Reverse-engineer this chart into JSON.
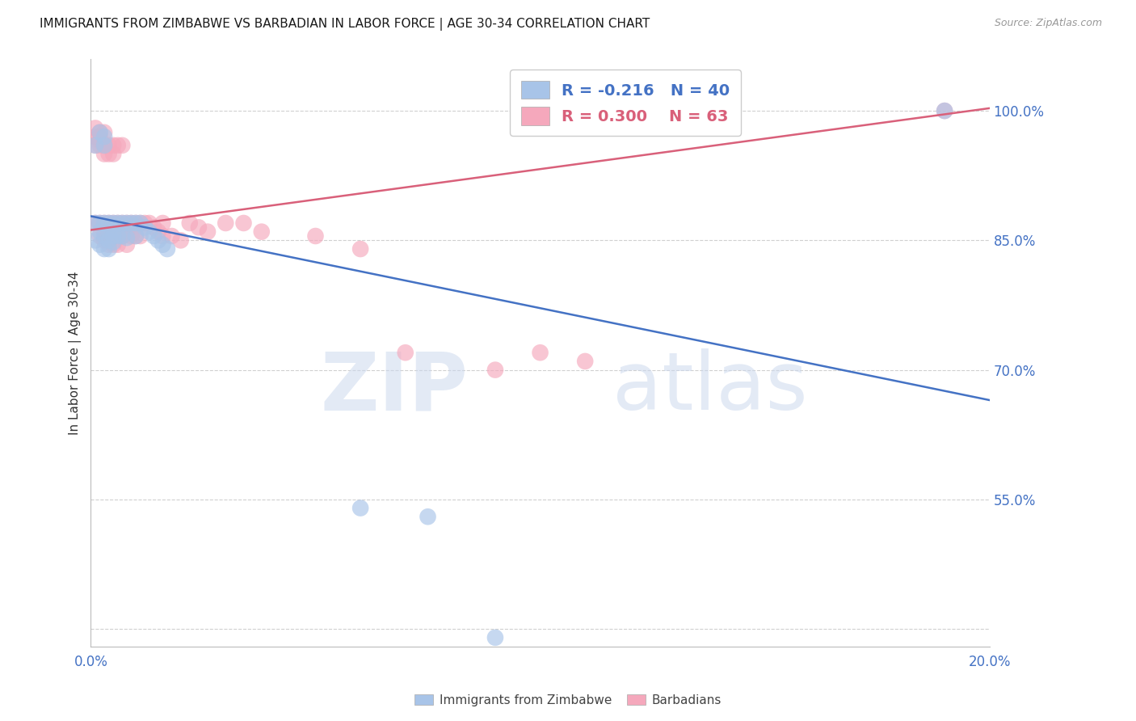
{
  "title": "IMMIGRANTS FROM ZIMBABWE VS BARBADIAN IN LABOR FORCE | AGE 30-34 CORRELATION CHART",
  "source": "Source: ZipAtlas.com",
  "ylabel": "In Labor Force | Age 30-34",
  "xlim": [
    0.0,
    0.2
  ],
  "ylim": [
    0.38,
    1.06
  ],
  "grid_yticks": [
    0.4,
    0.55,
    0.7,
    0.85,
    1.0
  ],
  "right_yticks": [
    0.55,
    0.7,
    0.85,
    1.0
  ],
  "right_yticklabels": [
    "55.0%",
    "70.0%",
    "85.0%",
    "100.0%"
  ],
  "xtick_positions": [
    0.0,
    0.04,
    0.08,
    0.12,
    0.16,
    0.2
  ],
  "xtick_labels": [
    "0.0%",
    "",
    "",
    "",
    "",
    "20.0%"
  ],
  "grid_color": "#d0d0d0",
  "legend_R_blue": "-0.216",
  "legend_N_blue": "40",
  "legend_R_pink": "0.300",
  "legend_N_pink": "63",
  "legend_label_blue": "Immigrants from Zimbabwe",
  "legend_label_pink": "Barbadians",
  "blue_color": "#a8c4e8",
  "pink_color": "#f5a8bc",
  "blue_line_color": "#4472c4",
  "pink_line_color": "#d9607a",
  "watermark_zip": "ZIP",
  "watermark_atlas": "atlas",
  "title_color": "#1a1a1a",
  "axis_label_color": "#4472c4",
  "blue_line_x": [
    0.0,
    0.2
  ],
  "blue_line_y": [
    0.878,
    0.665
  ],
  "pink_line_x": [
    0.0,
    0.2
  ],
  "pink_line_y": [
    0.862,
    1.003
  ],
  "blue_dots_x": [
    0.001,
    0.001,
    0.001,
    0.002,
    0.002,
    0.002,
    0.002,
    0.003,
    0.003,
    0.003,
    0.003,
    0.003,
    0.004,
    0.004,
    0.004,
    0.004,
    0.005,
    0.005,
    0.005,
    0.005,
    0.006,
    0.006,
    0.007,
    0.007,
    0.008,
    0.008,
    0.009,
    0.01,
    0.01,
    0.011,
    0.012,
    0.013,
    0.014,
    0.015,
    0.016,
    0.017,
    0.06,
    0.075,
    0.09,
    0.19
  ],
  "blue_dots_y": [
    0.96,
    0.87,
    0.85,
    0.975,
    0.87,
    0.86,
    0.845,
    0.97,
    0.96,
    0.87,
    0.855,
    0.84,
    0.87,
    0.86,
    0.85,
    0.84,
    0.87,
    0.862,
    0.855,
    0.848,
    0.87,
    0.855,
    0.87,
    0.855,
    0.87,
    0.853,
    0.87,
    0.87,
    0.855,
    0.87,
    0.865,
    0.86,
    0.855,
    0.85,
    0.845,
    0.84,
    0.54,
    0.53,
    0.39,
    1.0
  ],
  "pink_dots_x": [
    0.001,
    0.001,
    0.001,
    0.001,
    0.002,
    0.002,
    0.002,
    0.002,
    0.002,
    0.002,
    0.003,
    0.003,
    0.003,
    0.003,
    0.003,
    0.003,
    0.004,
    0.004,
    0.004,
    0.004,
    0.004,
    0.005,
    0.005,
    0.005,
    0.005,
    0.005,
    0.006,
    0.006,
    0.006,
    0.006,
    0.007,
    0.007,
    0.007,
    0.008,
    0.008,
    0.008,
    0.009,
    0.009,
    0.01,
    0.01,
    0.011,
    0.011,
    0.012,
    0.013,
    0.014,
    0.015,
    0.016,
    0.016,
    0.018,
    0.02,
    0.022,
    0.024,
    0.026,
    0.03,
    0.034,
    0.038,
    0.05,
    0.06,
    0.07,
    0.09,
    0.1,
    0.11,
    0.19
  ],
  "pink_dots_y": [
    0.98,
    0.97,
    0.96,
    0.87,
    0.975,
    0.97,
    0.965,
    0.96,
    0.87,
    0.855,
    0.975,
    0.96,
    0.95,
    0.87,
    0.86,
    0.85,
    0.96,
    0.95,
    0.87,
    0.86,
    0.845,
    0.96,
    0.95,
    0.87,
    0.86,
    0.845,
    0.96,
    0.87,
    0.86,
    0.845,
    0.96,
    0.87,
    0.855,
    0.87,
    0.86,
    0.845,
    0.87,
    0.855,
    0.87,
    0.855,
    0.87,
    0.855,
    0.87,
    0.87,
    0.865,
    0.86,
    0.87,
    0.855,
    0.855,
    0.85,
    0.87,
    0.865,
    0.86,
    0.87,
    0.87,
    0.86,
    0.855,
    0.84,
    0.72,
    0.7,
    0.72,
    0.71,
    1.0
  ]
}
